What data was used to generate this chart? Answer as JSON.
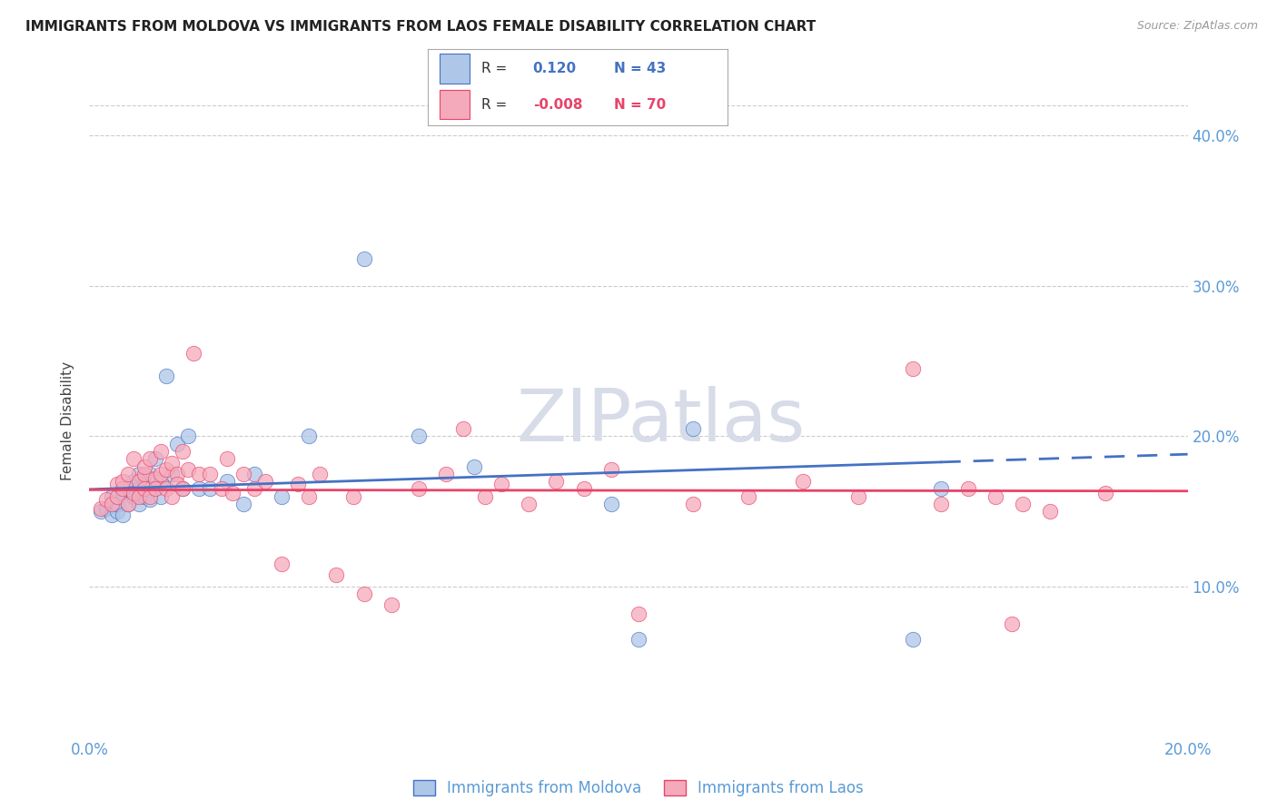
{
  "title": "IMMIGRANTS FROM MOLDOVA VS IMMIGRANTS FROM LAOS FEMALE DISABILITY CORRELATION CHART",
  "source": "Source: ZipAtlas.com",
  "ylabel": "Female Disability",
  "xlim": [
    0.0,
    0.2
  ],
  "ylim": [
    0.0,
    0.42
  ],
  "yticks": [
    0.1,
    0.2,
    0.3,
    0.4
  ],
  "ytick_labels": [
    "10.0%",
    "20.0%",
    "30.0%",
    "40.0%"
  ],
  "xticks": [
    0.0,
    0.05,
    0.1,
    0.15,
    0.2
  ],
  "xtick_labels": [
    "0.0%",
    "",
    "",
    "",
    "20.0%"
  ],
  "moldova_R": 0.12,
  "moldova_N": 43,
  "laos_R": -0.008,
  "laos_N": 70,
  "moldova_color": "#aec6e8",
  "laos_color": "#f5aabb",
  "moldova_line_color": "#4472C4",
  "laos_line_color": "#E8436A",
  "axis_color": "#5B9BD5",
  "background_color": "#ffffff",
  "moldova_scatter_x": [
    0.002,
    0.003,
    0.004,
    0.004,
    0.005,
    0.005,
    0.006,
    0.006,
    0.007,
    0.007,
    0.008,
    0.008,
    0.009,
    0.009,
    0.009,
    0.01,
    0.01,
    0.011,
    0.011,
    0.012,
    0.012,
    0.013,
    0.013,
    0.014,
    0.015,
    0.016,
    0.017,
    0.018,
    0.02,
    0.022,
    0.025,
    0.028,
    0.03,
    0.035,
    0.04,
    0.05,
    0.06,
    0.07,
    0.095,
    0.1,
    0.11,
    0.15,
    0.155
  ],
  "moldova_scatter_y": [
    0.15,
    0.152,
    0.148,
    0.16,
    0.15,
    0.155,
    0.148,
    0.162,
    0.155,
    0.165,
    0.16,
    0.17,
    0.155,
    0.165,
    0.175,
    0.16,
    0.168,
    0.175,
    0.158,
    0.185,
    0.165,
    0.17,
    0.16,
    0.24,
    0.175,
    0.195,
    0.165,
    0.2,
    0.165,
    0.165,
    0.17,
    0.155,
    0.175,
    0.16,
    0.2,
    0.318,
    0.2,
    0.18,
    0.155,
    0.065,
    0.205,
    0.065,
    0.165
  ],
  "laos_scatter_x": [
    0.002,
    0.003,
    0.004,
    0.005,
    0.005,
    0.006,
    0.006,
    0.007,
    0.007,
    0.008,
    0.008,
    0.009,
    0.009,
    0.01,
    0.01,
    0.01,
    0.011,
    0.011,
    0.012,
    0.012,
    0.013,
    0.013,
    0.014,
    0.014,
    0.015,
    0.015,
    0.016,
    0.016,
    0.017,
    0.017,
    0.018,
    0.019,
    0.02,
    0.022,
    0.024,
    0.025,
    0.026,
    0.028,
    0.03,
    0.032,
    0.035,
    0.038,
    0.04,
    0.042,
    0.045,
    0.048,
    0.05,
    0.055,
    0.06,
    0.065,
    0.068,
    0.072,
    0.075,
    0.08,
    0.085,
    0.09,
    0.095,
    0.1,
    0.11,
    0.12,
    0.13,
    0.14,
    0.15,
    0.155,
    0.16,
    0.165,
    0.168,
    0.17,
    0.175,
    0.185
  ],
  "laos_scatter_y": [
    0.152,
    0.158,
    0.155,
    0.16,
    0.168,
    0.165,
    0.17,
    0.155,
    0.175,
    0.162,
    0.185,
    0.17,
    0.16,
    0.175,
    0.165,
    0.18,
    0.185,
    0.16,
    0.172,
    0.165,
    0.175,
    0.19,
    0.178,
    0.165,
    0.182,
    0.16,
    0.175,
    0.168,
    0.19,
    0.165,
    0.178,
    0.255,
    0.175,
    0.175,
    0.165,
    0.185,
    0.162,
    0.175,
    0.165,
    0.17,
    0.115,
    0.168,
    0.16,
    0.175,
    0.108,
    0.16,
    0.095,
    0.088,
    0.165,
    0.175,
    0.205,
    0.16,
    0.168,
    0.155,
    0.17,
    0.165,
    0.178,
    0.082,
    0.155,
    0.16,
    0.17,
    0.16,
    0.245,
    0.155,
    0.165,
    0.16,
    0.075,
    0.155,
    0.15,
    0.162
  ]
}
